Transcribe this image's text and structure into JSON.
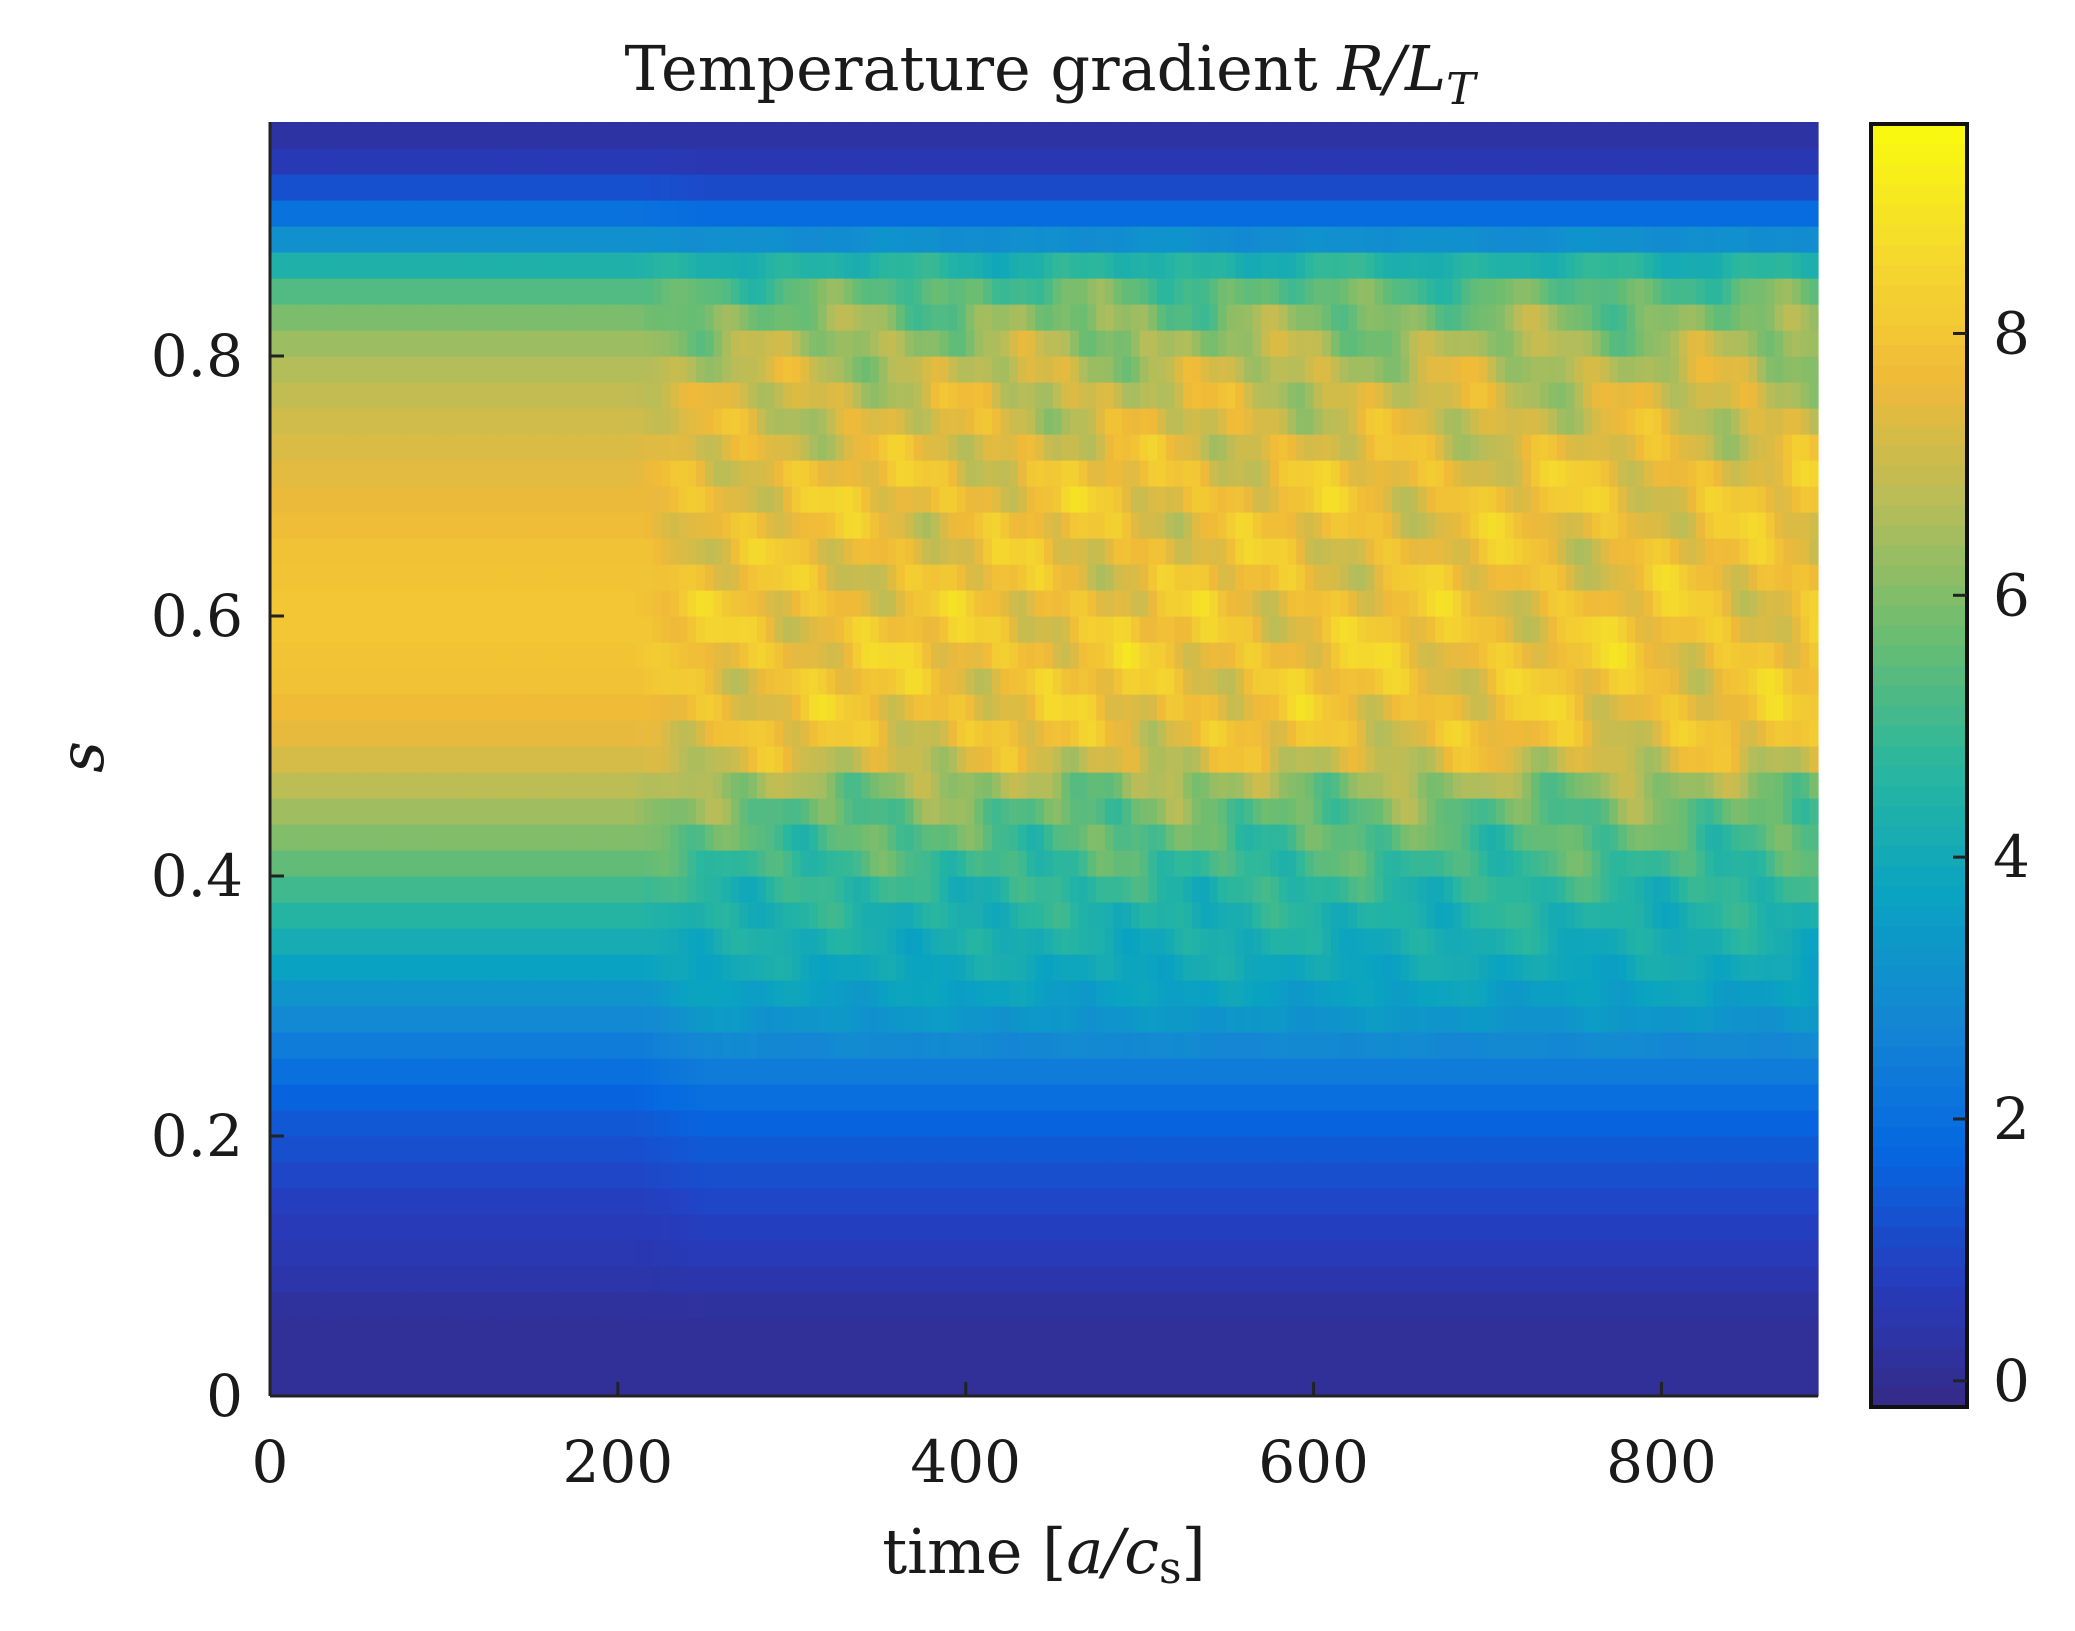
{
  "chart_data": {
    "type": "heatmap",
    "title": "Temperature gradient R/L_T",
    "title_parts": {
      "text": "Temperature gradient",
      "var_main": "R/L",
      "var_sub": "T"
    },
    "xlabel": "time [a/c_s]",
    "xlabel_parts": {
      "prefix": "time ",
      "lbr": "[",
      "var": "a/c",
      "sub": "s",
      "rbr": "]"
    },
    "ylabel": "s",
    "xlim": [
      0,
      890
    ],
    "ylim": [
      0,
      0.98
    ],
    "x_ticks": [
      0,
      200,
      400,
      600,
      800
    ],
    "x_tick_labels": [
      "0",
      "200",
      "400",
      "600",
      "800"
    ],
    "y_ticks": [
      0,
      0.2,
      0.4,
      0.6,
      0.8
    ],
    "y_tick_labels": [
      "0",
      "0.2",
      "0.4",
      "0.6",
      "0.8"
    ],
    "colorbar": {
      "range": [
        -0.2,
        9.6
      ],
      "ticks": [
        0,
        2,
        4,
        6,
        8
      ],
      "tick_labels": [
        "0",
        "2",
        "4",
        "6",
        "8"
      ],
      "colormap": "parula"
    },
    "transition_time": 230,
    "profile": {
      "s": [
        0.02,
        0.06,
        0.1,
        0.14,
        0.18,
        0.22,
        0.26,
        0.3,
        0.34,
        0.38,
        0.42,
        0.46,
        0.5,
        0.54,
        0.58,
        0.62,
        0.66,
        0.7,
        0.74,
        0.78,
        0.82,
        0.86,
        0.9,
        0.94,
        0.97
      ],
      "early": [
        0.1,
        0.1,
        0.5,
        0.7,
        1.1,
        1.5,
        2.2,
        3.0,
        3.9,
        4.8,
        5.8,
        6.6,
        7.4,
        7.8,
        8.0,
        8.0,
        7.8,
        7.5,
        7.2,
        6.8,
        6.2,
        5.0,
        2.5,
        0.8,
        0.3
      ],
      "late": [
        0.1,
        0.1,
        0.6,
        0.9,
        1.3,
        1.8,
        2.6,
        3.5,
        4.1,
        4.5,
        5.2,
        5.8,
        7.6,
        7.8,
        7.9,
        7.7,
        7.6,
        7.8,
        7.2,
        7.0,
        6.2,
        5.2,
        2.3,
        0.7,
        0.3
      ]
    }
  }
}
